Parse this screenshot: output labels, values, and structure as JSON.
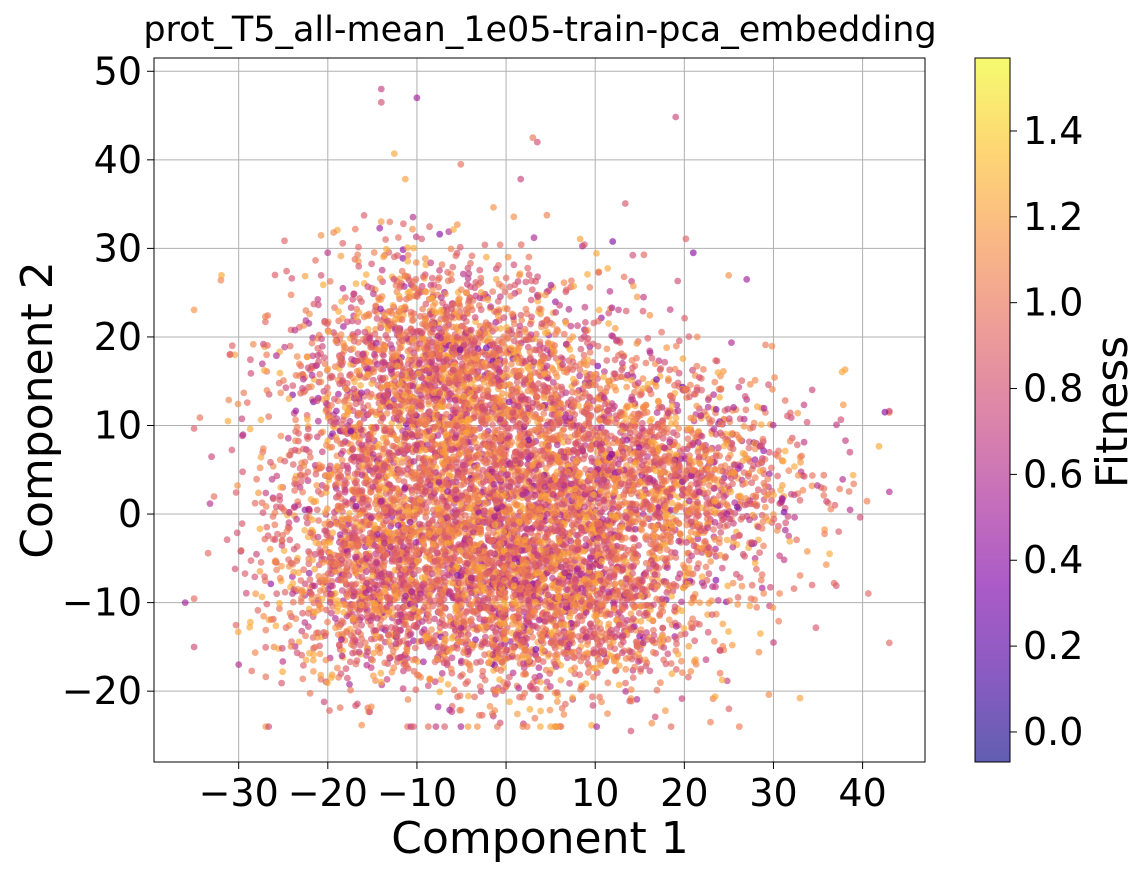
{
  "chart_data": {
    "type": "scatter",
    "title": "prot_T5_all-mean_1e05-train-pca_embedding",
    "xlabel": "Component 1",
    "ylabel": "Component 2",
    "xlim": [
      -39.5,
      47
    ],
    "ylim": [
      -28,
      51.5
    ],
    "xticks": [
      -30,
      -20,
      -10,
      0,
      10,
      20,
      30,
      40
    ],
    "yticks": [
      -20,
      -10,
      0,
      10,
      20,
      30,
      40,
      50
    ],
    "grid": true,
    "colormap": "plasma",
    "alpha": 0.65,
    "point_count_drawn": 9000,
    "colorbar": {
      "label": "Fitness",
      "range": [
        -0.07,
        1.57
      ],
      "ticks": [
        0.0,
        0.2,
        0.4,
        0.6,
        0.8,
        1.0,
        1.2,
        1.4
      ],
      "position": "right"
    },
    "distribution": {
      "note": "dense cloud; approximate density clusters in data units (centers, spreads, weights)",
      "clusters": [
        {
          "cx": -2,
          "cy": 2,
          "sx": 11,
          "sy": 10,
          "w": 0.45
        },
        {
          "cx": -8,
          "cy": 18,
          "sx": 8,
          "sy": 6,
          "w": 0.15
        },
        {
          "cx": 18,
          "cy": 4,
          "sx": 8,
          "sy": 6,
          "w": 0.15
        },
        {
          "cx": -15,
          "cy": -6,
          "sx": 6,
          "sy": 6,
          "w": 0.1
        },
        {
          "cx": 5,
          "cy": -10,
          "sx": 9,
          "sy": 5,
          "w": 0.15
        }
      ],
      "fitness_mean": 0.95,
      "fitness_std": 0.22
    },
    "outliers": [
      {
        "x": -14,
        "y": 48,
        "fitness": 0.7
      },
      {
        "x": -14,
        "y": 46.5,
        "fitness": 0.8
      },
      {
        "x": -10,
        "y": 47,
        "fitness": 0.5
      },
      {
        "x": 3,
        "y": 42.5,
        "fitness": 1.0
      },
      {
        "x": 3.5,
        "y": 42,
        "fitness": 0.8
      },
      {
        "x": -36,
        "y": -10,
        "fitness": 0.5
      },
      {
        "x": -31,
        "y": 18,
        "fitness": 0.9
      },
      {
        "x": 43,
        "y": 2.5,
        "fitness": 0.6
      },
      {
        "x": 42.5,
        "y": 11.5,
        "fitness": 0.4
      },
      {
        "x": 14,
        "y": -24.5,
        "fitness": 0.8
      },
      {
        "x": 25,
        "y": -22,
        "fitness": 0.9
      },
      {
        "x": -30,
        "y": -17,
        "fitness": 0.6
      },
      {
        "x": 27,
        "y": 26.5,
        "fitness": 0.5
      },
      {
        "x": 21,
        "y": 29.5,
        "fitness": 0.4
      },
      {
        "x": 30,
        "y": -14.5,
        "fitness": 0.7
      }
    ]
  }
}
